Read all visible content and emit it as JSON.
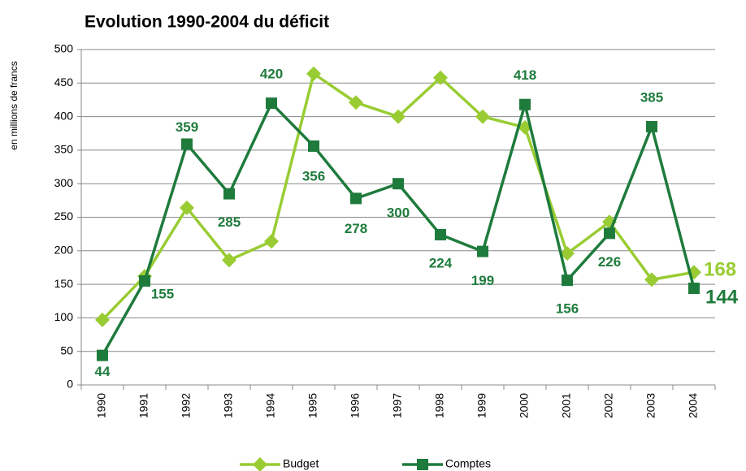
{
  "chart_data": {
    "type": "line",
    "title": "Evolution 1990-2004 du déficit",
    "y_label": "en millions de francs",
    "categories": [
      "1990",
      "1991",
      "1992",
      "1993",
      "1994",
      "1995",
      "1996",
      "1997",
      "1998",
      "1999",
      "2000",
      "2001",
      "2002",
      "2003",
      "2004"
    ],
    "series": [
      {
        "name": "Budget",
        "color": "#99cc33",
        "marker": "diamond",
        "values": [
          97,
          162,
          264,
          186,
          214,
          464,
          421,
          400,
          458,
          400,
          384,
          196,
          243,
          157,
          168
        ]
      },
      {
        "name": "Comptes",
        "color": "#1e7b3c",
        "marker": "square",
        "values": [
          44,
          155,
          359,
          285,
          420,
          356,
          278,
          300,
          224,
          199,
          418,
          156,
          226,
          385,
          144
        ]
      }
    ],
    "ylim": [
      0,
      500
    ],
    "yticks": [
      0,
      50,
      100,
      150,
      200,
      250,
      300,
      350,
      400,
      450,
      500
    ],
    "grid": true,
    "legend": "bottom"
  }
}
